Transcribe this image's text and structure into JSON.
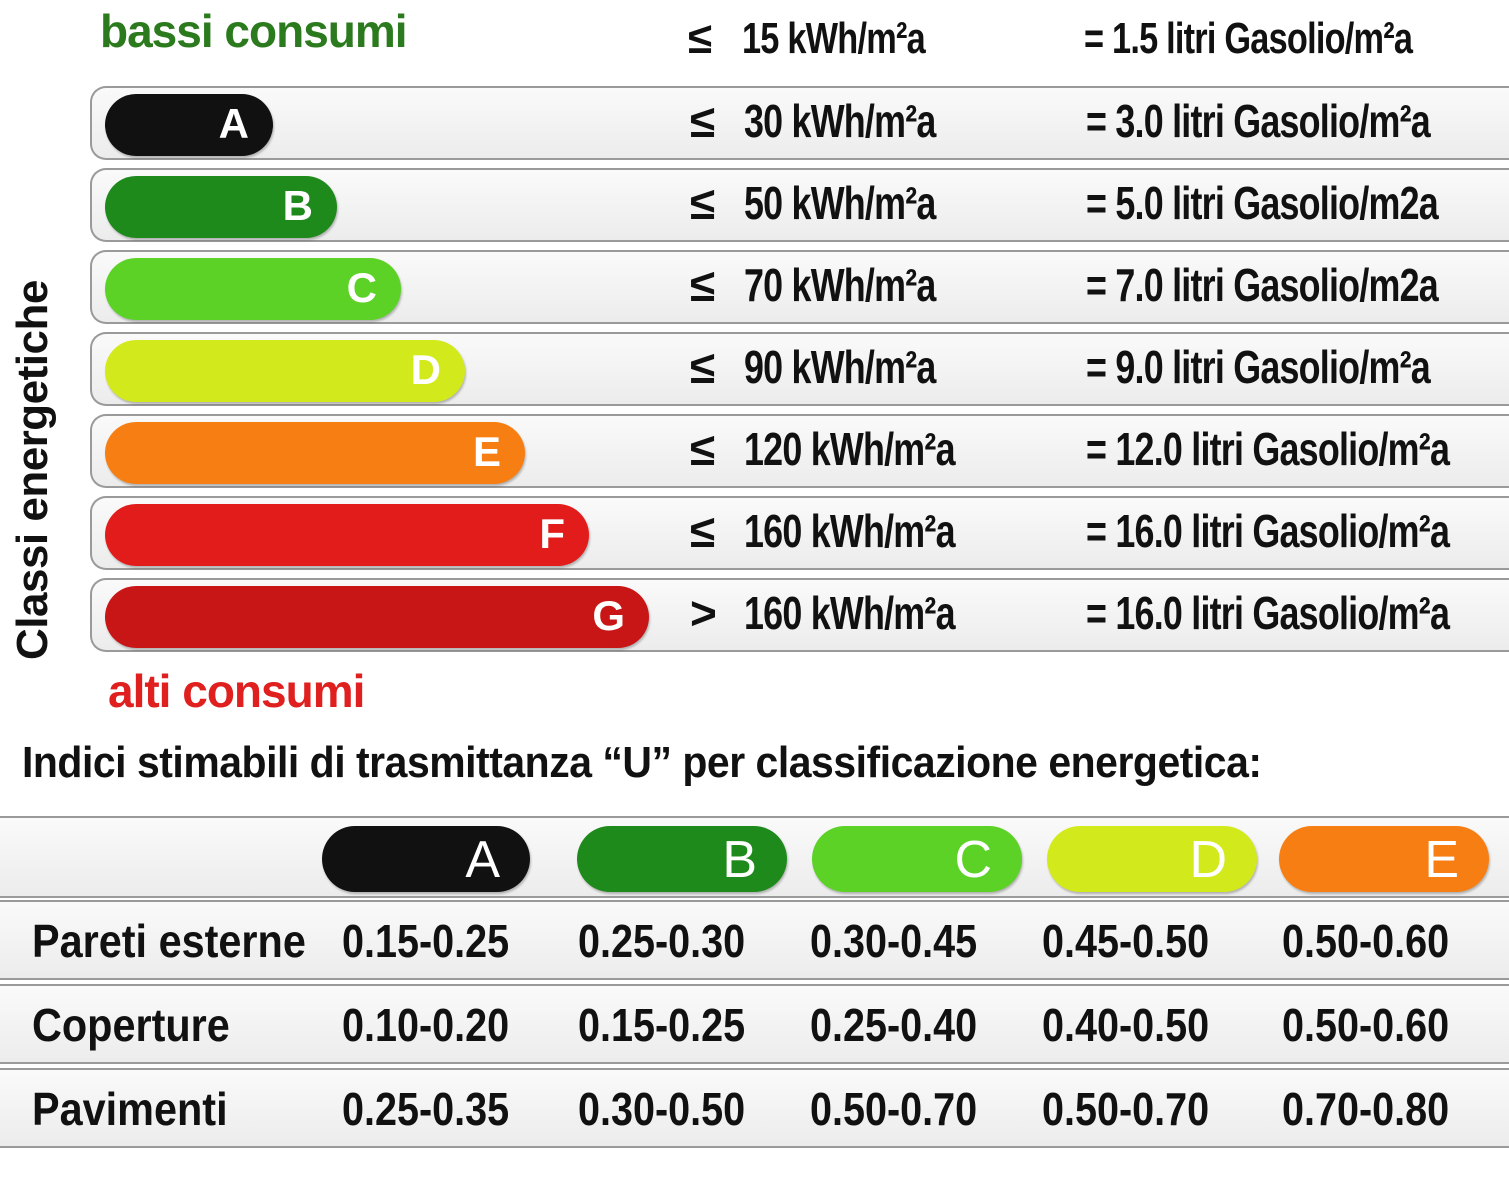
{
  "labels": {
    "top": "bassi consumi",
    "bottom": "alti consumi",
    "axis": "Classi energetiche",
    "u_title": "Indici stimabili di trasmittanza “U” per classificazione energetica:"
  },
  "header_row": {
    "op": "≤",
    "kwh": "15 kWh/m²a",
    "litri": "= 1.5 litri Gasolio/m²a"
  },
  "chart_data": [
    {
      "type": "bar",
      "title": "Classi energetiche",
      "categories": [
        "A",
        "B",
        "C",
        "D",
        "E",
        "F",
        "G"
      ],
      "operators": [
        "≤",
        "≤",
        "≤",
        "≤",
        "≤",
        "≤",
        ">"
      ],
      "values": [
        30,
        50,
        70,
        90,
        120,
        160,
        160
      ],
      "value_labels": [
        "30 kWh/m²a",
        "50 kWh/m²a",
        "70 kWh/m²a",
        "90 kWh/m²a",
        "120 kWh/m²a",
        "160 kWh/m²a",
        "160 kWh/m²a"
      ],
      "litri_labels": [
        "= 3.0 litri Gasolio/m²a",
        "= 5.0 litri Gasolio/m2a",
        "= 7.0 litri Gasolio/m2a",
        "= 9.0 litri Gasolio/m²a",
        "= 12.0 litri Gasolio/m²a",
        "= 16.0 litri Gasolio/m²a",
        "= 16.0 litri Gasolio/m²a"
      ],
      "colors": [
        "#111111",
        "#1f8a1c",
        "#5cd126",
        "#d2ea1c",
        "#f77e12",
        "#e21c1a",
        "#c81616"
      ],
      "xlabel": "",
      "ylabel": "Classi energetiche"
    },
    {
      "type": "table",
      "title": "Indici stimabili di trasmittanza “U” per classificazione energetica:",
      "columns": [
        "A",
        "B",
        "C",
        "D",
        "E"
      ],
      "column_colors": [
        "#111111",
        "#1f8a1c",
        "#5cd126",
        "#d2ea1c",
        "#f77e12"
      ],
      "rows": [
        {
          "label": "Pareti esterne",
          "values": [
            "0.15-0.25",
            "0.25-0.30",
            "0.30-0.45",
            "0.45-0.50",
            "0.50-0.60"
          ]
        },
        {
          "label": "Coperture",
          "values": [
            "0.10-0.20",
            "0.15-0.25",
            "0.25-0.40",
            "0.40-0.50",
            "0.50-0.60"
          ]
        },
        {
          "label": "Pavimenti",
          "values": [
            "0.25-0.35",
            "0.30-0.50",
            "0.50-0.70",
            "0.50-0.70",
            "0.70-0.80"
          ]
        }
      ]
    }
  ]
}
